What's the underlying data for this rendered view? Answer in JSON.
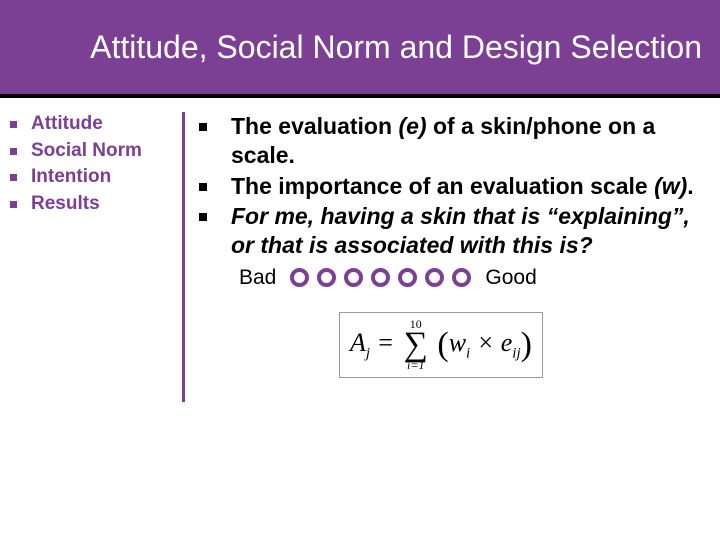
{
  "title": "Attitude, Social Norm and Design Selection",
  "colors": {
    "accent": "#7b3f94",
    "title_bg": "#7b3f94",
    "title_text": "#ffffff",
    "body_text": "#000000"
  },
  "typography": {
    "title_fontsize": 32,
    "left_fontsize": 19,
    "right_fontsize": 23,
    "scale_fontsize": 21
  },
  "left_nav": {
    "items": [
      {
        "label": "Attitude"
      },
      {
        "label": "Social Norm"
      },
      {
        "label": "Intention"
      },
      {
        "label": "Results"
      }
    ]
  },
  "right_bullets": [
    {
      "pre": "The evaluation ",
      "ital": "(e)",
      "post": " of a skin/phone on a scale."
    },
    {
      "pre": "The importance of an evaluation scale ",
      "ital": "(w)",
      "post": "."
    },
    {
      "pre": "",
      "ital": "For me, having a skin that is “explaining”, or that is associated with this is?",
      "post": ""
    }
  ],
  "scale": {
    "left_label": "Bad",
    "right_label": "Good",
    "circle_count": 7,
    "circle_color": "#7b3f94"
  },
  "formula": {
    "lhs_var": "A",
    "lhs_sub": "j",
    "sum_top": "10",
    "sum_bottom": "i=1",
    "w_var": "w",
    "w_sub": "i",
    "e_var": "e",
    "e_sub": "ij"
  }
}
